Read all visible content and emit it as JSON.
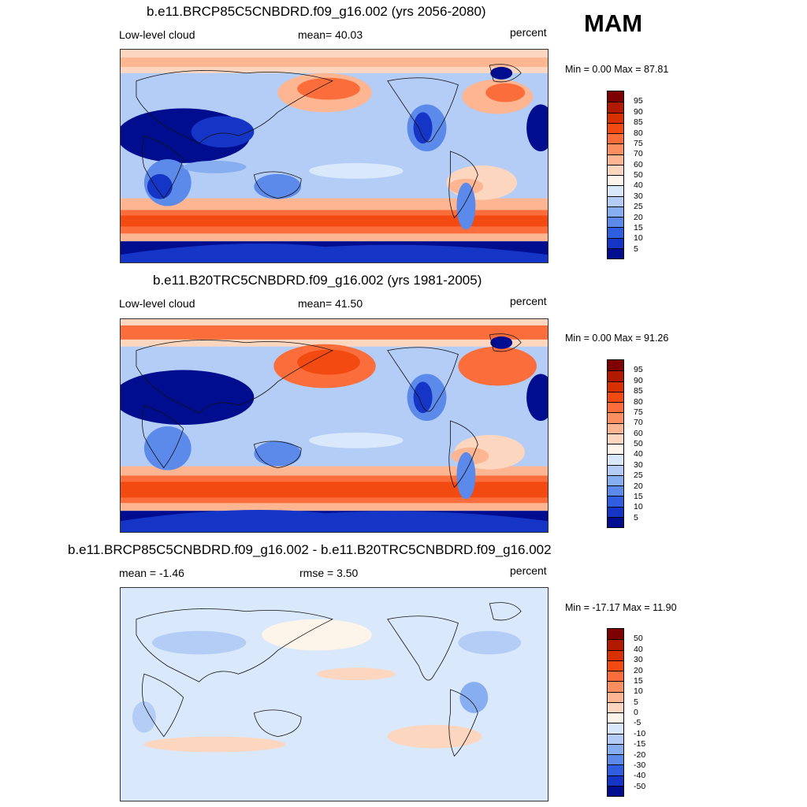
{
  "season": "MAM",
  "panels": [
    {
      "title": "b.e11.BRCP85C5CNBDRD.f09_g16.002 (yrs 2056-2080)",
      "left_label": "Low-level cloud",
      "center_label": "mean=  40.03",
      "right_label": "percent",
      "minmax": "Min =   0.00 Max =  87.81"
    },
    {
      "title": "b.e11.B20TRC5CNBDRD.f09_g16.002 (yrs 1981-2005)",
      "left_label": "Low-level cloud",
      "center_label": "mean=  41.50",
      "right_label": "percent",
      "minmax": "Min =   0.00 Max =  91.26"
    },
    {
      "title": "b.e11.BRCP85C5CNBDRD.f09_g16.002 - b.e11.B20TRC5CNBDRD.f09_g16.002",
      "left_label": "mean =  -1.46",
      "center_label": "rmse =   3.50",
      "right_label": "percent",
      "minmax": "Min = -17.17 Max =  11.90"
    }
  ],
  "colorbar_abs": {
    "labels": [
      "95",
      "90",
      "85",
      "80",
      "75",
      "70",
      "60",
      "50",
      "40",
      "30",
      "25",
      "20",
      "15",
      "10",
      "5"
    ],
    "colors": [
      "#7f0000",
      "#b21a00",
      "#d93000",
      "#f24a10",
      "#fb6d3a",
      "#fc8f60",
      "#fdb592",
      "#fdd6bf",
      "#fef5ea",
      "#d9e8fb",
      "#b3cdf7",
      "#88aef2",
      "#5b8aeb",
      "#2f5fe0",
      "#1535c7",
      "#000d8f"
    ]
  },
  "colorbar_diff": {
    "labels": [
      "50",
      "40",
      "30",
      "20",
      "15",
      "10",
      "5",
      "0",
      "-5",
      "-10",
      "-15",
      "-20",
      "-30",
      "-40",
      "-50"
    ],
    "colors": [
      "#7f0000",
      "#b21a00",
      "#d93000",
      "#f24a10",
      "#fb6d3a",
      "#fc8f60",
      "#fdb592",
      "#fdd6bf",
      "#fef5ea",
      "#d9e8fb",
      "#b3cdf7",
      "#88aef2",
      "#5b8aeb",
      "#2f5fe0",
      "#1535c7",
      "#000d8f"
    ]
  }
}
